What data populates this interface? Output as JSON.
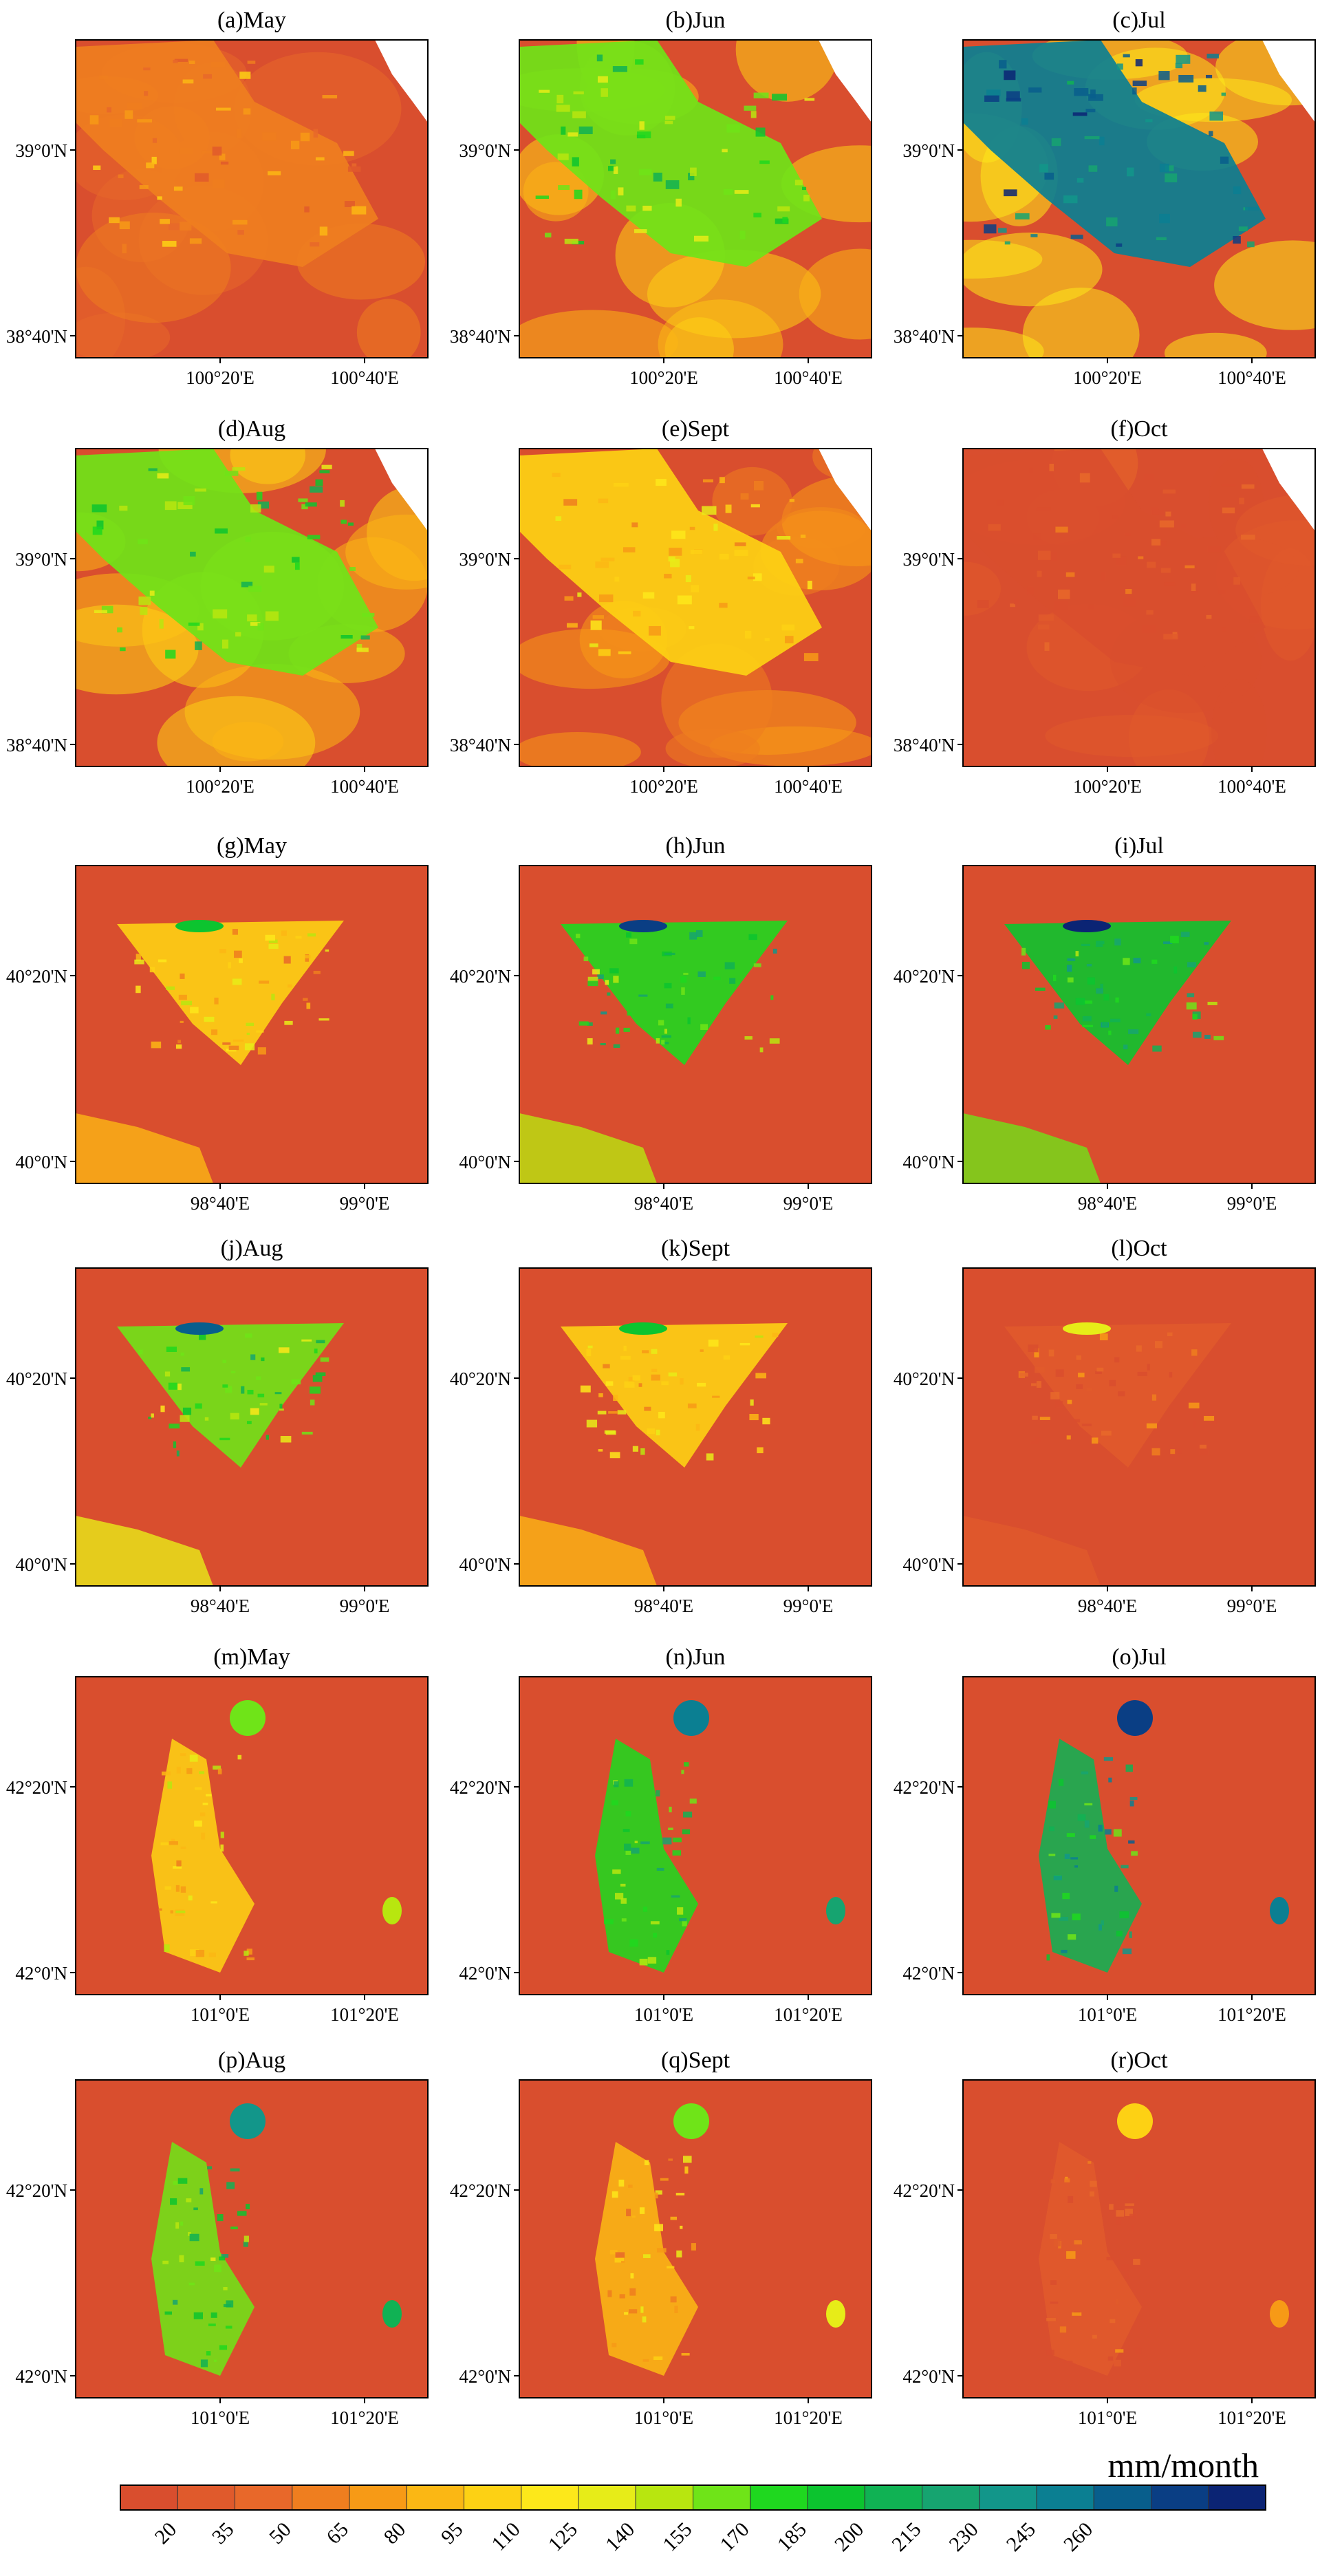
{
  "colorbar": {
    "unit": "mm/month",
    "colors": [
      "#d94e2e",
      "#e05a2c",
      "#e8682a",
      "#ef7e1f",
      "#f79a16",
      "#fbb714",
      "#fdd114",
      "#fde81a",
      "#e7ec18",
      "#b8e60f",
      "#6fe418",
      "#1fd81f",
      "#0cc42f",
      "#10b254",
      "#16a470",
      "#12968a",
      "#0b7f92",
      "#085e8c",
      "#0a3e84",
      "#0b2474"
    ],
    "tick_labels": [
      "20",
      "35",
      "50",
      "65",
      "80",
      "95",
      "110",
      "125",
      "140",
      "155",
      "170",
      "185",
      "200",
      "215",
      "230",
      "245",
      "260"
    ]
  },
  "panels": [
    {
      "title": "(a)May",
      "region": "r1",
      "level": 0.18
    },
    {
      "title": "(b)Jun",
      "region": "r1",
      "level": 0.55
    },
    {
      "title": "(c)Jul",
      "region": "r1",
      "level": 0.85
    },
    {
      "title": "(d)Aug",
      "region": "r1",
      "level": 0.55
    },
    {
      "title": "(e)Sept",
      "region": "r1",
      "level": 0.3
    },
    {
      "title": "(f)Oct",
      "region": "r1",
      "level": 0.02
    },
    {
      "title": "(g)May",
      "region": "r2",
      "level": 0.3
    },
    {
      "title": "(h)Jun",
      "region": "r2",
      "level": 0.6
    },
    {
      "title": "(i)Jul",
      "region": "r2",
      "level": 0.65
    },
    {
      "title": "(j)Aug",
      "region": "r2",
      "level": 0.55
    },
    {
      "title": "(k)Sept",
      "region": "r2",
      "level": 0.3
    },
    {
      "title": "(l)Oct",
      "region": "r2",
      "level": 0.05
    },
    {
      "title": "(m)May",
      "region": "r3",
      "level": 0.3
    },
    {
      "title": "(n)Jun",
      "region": "r3",
      "level": 0.6
    },
    {
      "title": "(o)Jul",
      "region": "r3",
      "level": 0.7
    },
    {
      "title": "(p)Aug",
      "region": "r3",
      "level": 0.55
    },
    {
      "title": "(q)Sept",
      "region": "r3",
      "level": 0.28
    },
    {
      "title": "(r)Oct",
      "region": "r3",
      "level": 0.05
    }
  ],
  "regions": {
    "r1": {
      "lat_labels": [
        "39°0'N",
        "38°40'N"
      ],
      "lon_labels": [
        "100°20'E",
        "100°40'E"
      ]
    },
    "r2": {
      "lat_labels": [
        "40°20'N",
        "40°0'N"
      ],
      "lon_labels": [
        "98°40'E",
        "99°0'E"
      ]
    },
    "r3": {
      "lat_labels": [
        "42°20'N",
        "42°0'N"
      ],
      "lon_labels": [
        "101°0'E",
        "101°20'E"
      ]
    }
  }
}
